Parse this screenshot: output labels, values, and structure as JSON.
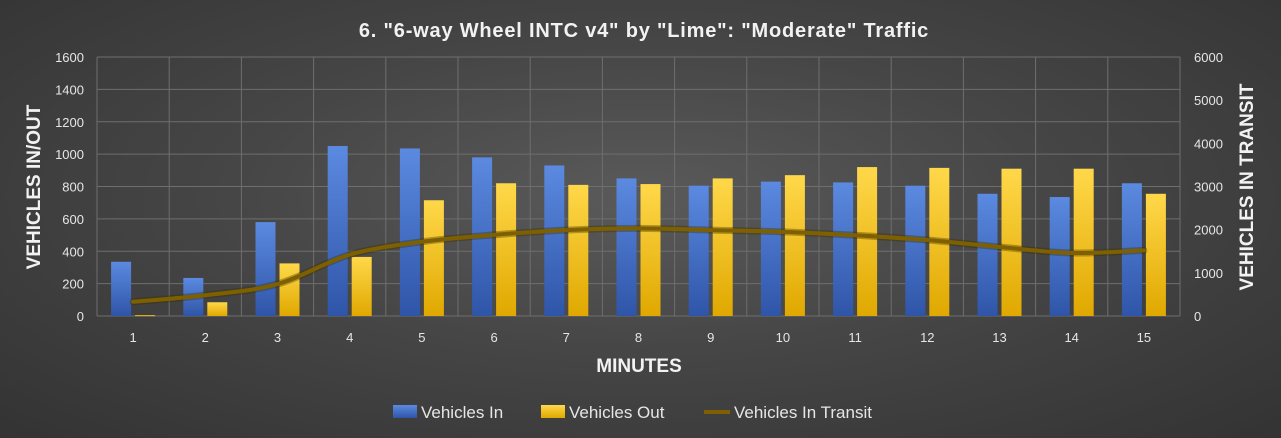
{
  "chart_data": {
    "type": "bar",
    "title": "6. \"6-way Wheel INTC v4\" by \"Lime\": \"Moderate\" Traffic",
    "xlabel": "MINUTES",
    "ylabel": "VEHICLES IN/OUT",
    "y2label": "VEHICLES IN TRANSIT",
    "categories": [
      "1",
      "2",
      "3",
      "4",
      "5",
      "6",
      "7",
      "8",
      "9",
      "10",
      "11",
      "12",
      "13",
      "14",
      "15"
    ],
    "ylim": [
      0,
      1600
    ],
    "y2lim": [
      0,
      6000
    ],
    "yticks": [
      0,
      200,
      400,
      600,
      800,
      1000,
      1200,
      1400,
      1600
    ],
    "y2ticks": [
      0,
      1000,
      2000,
      3000,
      4000,
      5000,
      6000
    ],
    "grid": true,
    "legend_position": "bottom",
    "series": [
      {
        "name": "Vehicles In",
        "type": "bar",
        "axis": "left",
        "color": "#4472c4",
        "values": [
          335,
          235,
          580,
          1050,
          1035,
          980,
          930,
          850,
          805,
          830,
          825,
          805,
          755,
          735,
          820
        ]
      },
      {
        "name": "Vehicles Out",
        "type": "bar",
        "axis": "left",
        "color": "#ffc000",
        "values": [
          5,
          85,
          325,
          365,
          715,
          820,
          810,
          815,
          850,
          870,
          920,
          915,
          910,
          910,
          755
        ]
      },
      {
        "name": "Vehicles In Transit",
        "type": "line",
        "axis": "right",
        "color": "#7f6000",
        "values": [
          330,
          480,
          740,
          1420,
          1720,
          1880,
          1990,
          2030,
          1990,
          1950,
          1870,
          1760,
          1600,
          1460,
          1520
        ]
      }
    ]
  }
}
